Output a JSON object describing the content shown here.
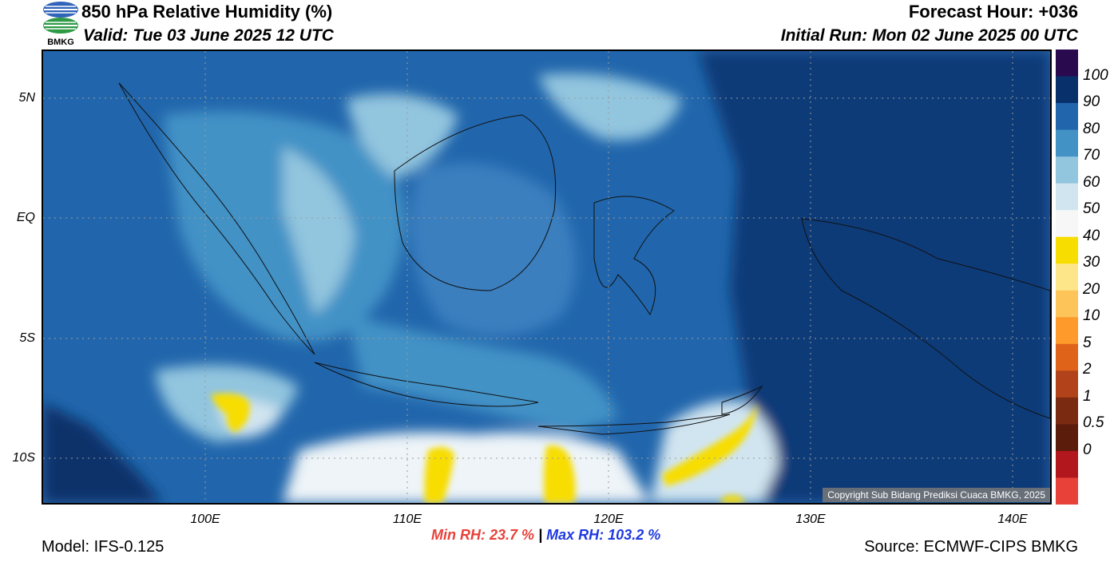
{
  "header": {
    "title": "850 hPa Relative Humidity (%)",
    "valid": "Valid: Tue 03 June 2025 12 UTC",
    "forecast_hour": "Forecast Hour: +036",
    "initial_run": "Initial Run: Mon 02 June 2025 00 UTC",
    "logo_text": "BMKG"
  },
  "map": {
    "lat_labels": [
      "5N",
      "EQ",
      "5S",
      "10S"
    ],
    "lon_labels": [
      "100E",
      "110E",
      "120E",
      "130E",
      "140E"
    ],
    "copyright": "Copyright Sub Bidang Prediksi Cuaca BMKG, 2025"
  },
  "colorbar": {
    "labels": [
      "100",
      "90",
      "80",
      "70",
      "60",
      "50",
      "40",
      "30",
      "20",
      "10",
      "5",
      "2",
      "1",
      "0.5",
      "0"
    ],
    "colors": [
      "#2a0a4f",
      "#08306b",
      "#2166ac",
      "#4392c6",
      "#92c5de",
      "#d1e5f0",
      "#f7f7f7",
      "#f7dd00",
      "#fde68a",
      "#fdc45a",
      "#fd9a2b",
      "#e0631a",
      "#b1421a",
      "#7b2a12",
      "#5b1c0c",
      "#b2171d",
      "#e8413a"
    ]
  },
  "stats": {
    "min_label": "Min RH:",
    "min_value": "23.7 %",
    "separator": "|",
    "max_label": "Max RH:",
    "max_value": "103.2 %"
  },
  "footer": {
    "model": "Model: IFS-0.125",
    "source": "Source: ECMWF-CIPS BMKG"
  }
}
